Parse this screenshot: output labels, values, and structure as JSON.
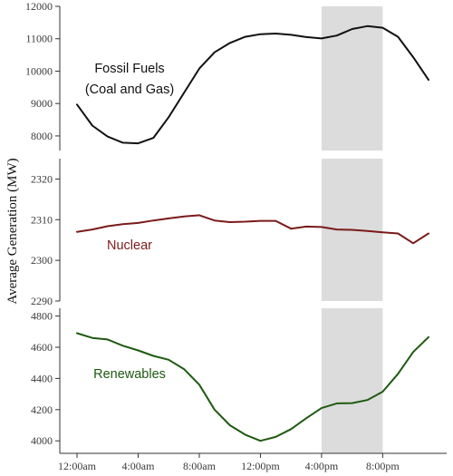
{
  "chart_data": {
    "type": "line",
    "ylabel": "Average Generation (MW)",
    "x": [
      0,
      1,
      2,
      3,
      4,
      5,
      6,
      7,
      8,
      9,
      10,
      11,
      12,
      13,
      14,
      15,
      16,
      17,
      18,
      19,
      20,
      21,
      22,
      23
    ],
    "x_tick_values": [
      0,
      4,
      8,
      12,
      16,
      20
    ],
    "x_tick_labels": [
      "12:00am",
      "4:00am",
      "8:00am",
      "12:00pm",
      "4:00pm",
      "8:00pm"
    ],
    "highlight_band": {
      "x_start": 16,
      "x_end": 20,
      "color": "#dcdcdc"
    },
    "panels": [
      {
        "series_label": [
          "Fossil Fuels",
          "(Coal and Gas)"
        ],
        "color": "#111111",
        "ylim": [
          7550,
          12000
        ],
        "yticks": [
          8000,
          9000,
          10000,
          11000,
          12000
        ],
        "values": [
          8970,
          8320,
          7980,
          7790,
          7770,
          7940,
          8580,
          9330,
          10080,
          10580,
          10870,
          11060,
          11140,
          11160,
          11120,
          11050,
          11010,
          11100,
          11300,
          11390,
          11340,
          11060,
          10430,
          9730
        ]
      },
      {
        "series_label": [
          "Nuclear"
        ],
        "color": "#7b1a1a",
        "ylim": [
          2290,
          2325
        ],
        "yticks": [
          2290,
          2300,
          2310,
          2320
        ],
        "values": [
          2307.0,
          2307.6,
          2308.4,
          2308.9,
          2309.2,
          2309.8,
          2310.3,
          2310.8,
          2311.1,
          2309.8,
          2309.4,
          2309.5,
          2309.7,
          2309.7,
          2307.8,
          2308.3,
          2308.2,
          2307.6,
          2307.5,
          2307.2,
          2306.9,
          2306.6,
          2304.2,
          2306.6
        ]
      },
      {
        "series_label": [
          "Renewables"
        ],
        "color": "#1e5a10",
        "ylim": [
          3920,
          4850
        ],
        "yticks": [
          4000,
          4200,
          4400,
          4600,
          4800
        ],
        "values": [
          4690,
          4660,
          4650,
          4610,
          4580,
          4545,
          4520,
          4460,
          4360,
          4200,
          4100,
          4040,
          4000,
          4025,
          4075,
          4145,
          4210,
          4240,
          4242,
          4262,
          4315,
          4430,
          4570,
          4665
        ]
      }
    ]
  }
}
